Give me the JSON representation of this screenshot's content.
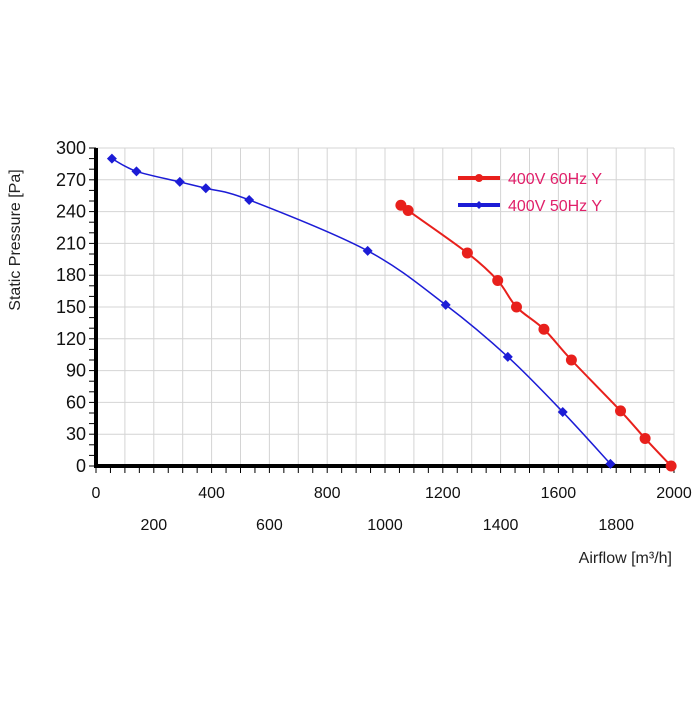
{
  "chart_data": {
    "type": "line",
    "xlabel": "Airflow [m³/h]",
    "ylabel": "Static Pressure [Pa]",
    "xlim": [
      0,
      2000
    ],
    "ylim": [
      0,
      300
    ],
    "x_ticks": [
      0,
      200,
      400,
      600,
      800,
      1000,
      1200,
      1400,
      1600,
      1800,
      2000
    ],
    "y_ticks": [
      0,
      30,
      60,
      90,
      120,
      150,
      180,
      210,
      240,
      270,
      300
    ],
    "grid": true,
    "legend_position": "top-right",
    "series": [
      {
        "name": "400V 60Hz Y",
        "color": "#e8201c",
        "marker": "circle",
        "x": [
          1055,
          1080,
          1285,
          1390,
          1455,
          1550,
          1645,
          1815,
          1900,
          1990
        ],
        "y": [
          246,
          241,
          201,
          175,
          150,
          129,
          100,
          52,
          26,
          0
        ]
      },
      {
        "name": "400V 50Hz Y",
        "color": "#1c1cd6",
        "marker": "diamond",
        "x": [
          55,
          140,
          290,
          380,
          530,
          940,
          1210,
          1425,
          1615,
          1780
        ],
        "y": [
          290,
          278,
          268,
          262,
          251,
          203,
          152,
          103,
          51,
          2
        ]
      }
    ]
  },
  "label_color": "#e0206a"
}
